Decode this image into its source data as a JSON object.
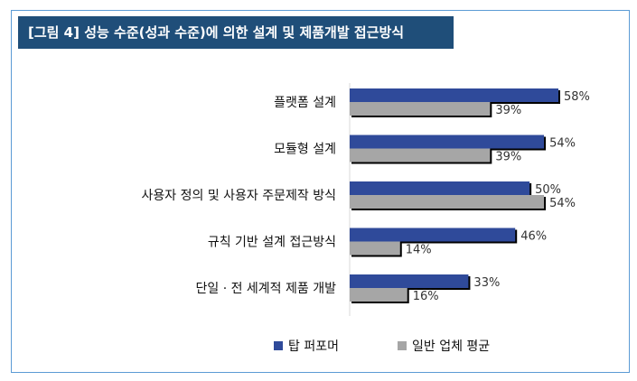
{
  "title": "[그림 4] 성능 수준(성과 수준)에 의한 설계 및 제품개발 접근방식",
  "colors": {
    "title_bg": "#1f4e79",
    "top": "#2f4a9a",
    "avg": "#a6a6a6",
    "frame": "#5b9bd5"
  },
  "chart_data": {
    "type": "bar",
    "orientation": "horizontal",
    "categories": [
      "플랫폼 설계",
      "모듈형 설계",
      "사용자 정의 및 사용자 주문제작 방식",
      "규칙 기반 설계 접근방식",
      "단일 · 전 세계적 제품 개발"
    ],
    "series": [
      {
        "name": "탑 퍼포머",
        "values": [
          58,
          54,
          50,
          46,
          33
        ],
        "labels": [
          "58%",
          "54%",
          "50%",
          "46%",
          "33%"
        ]
      },
      {
        "name": "일반 업체 평균",
        "values": [
          39,
          39,
          54,
          14,
          16
        ],
        "labels": [
          "39%",
          "39%",
          "54%",
          "14%",
          "16%"
        ]
      }
    ],
    "xlim": [
      0,
      70
    ],
    "legend_position": "bottom",
    "grid": false
  }
}
